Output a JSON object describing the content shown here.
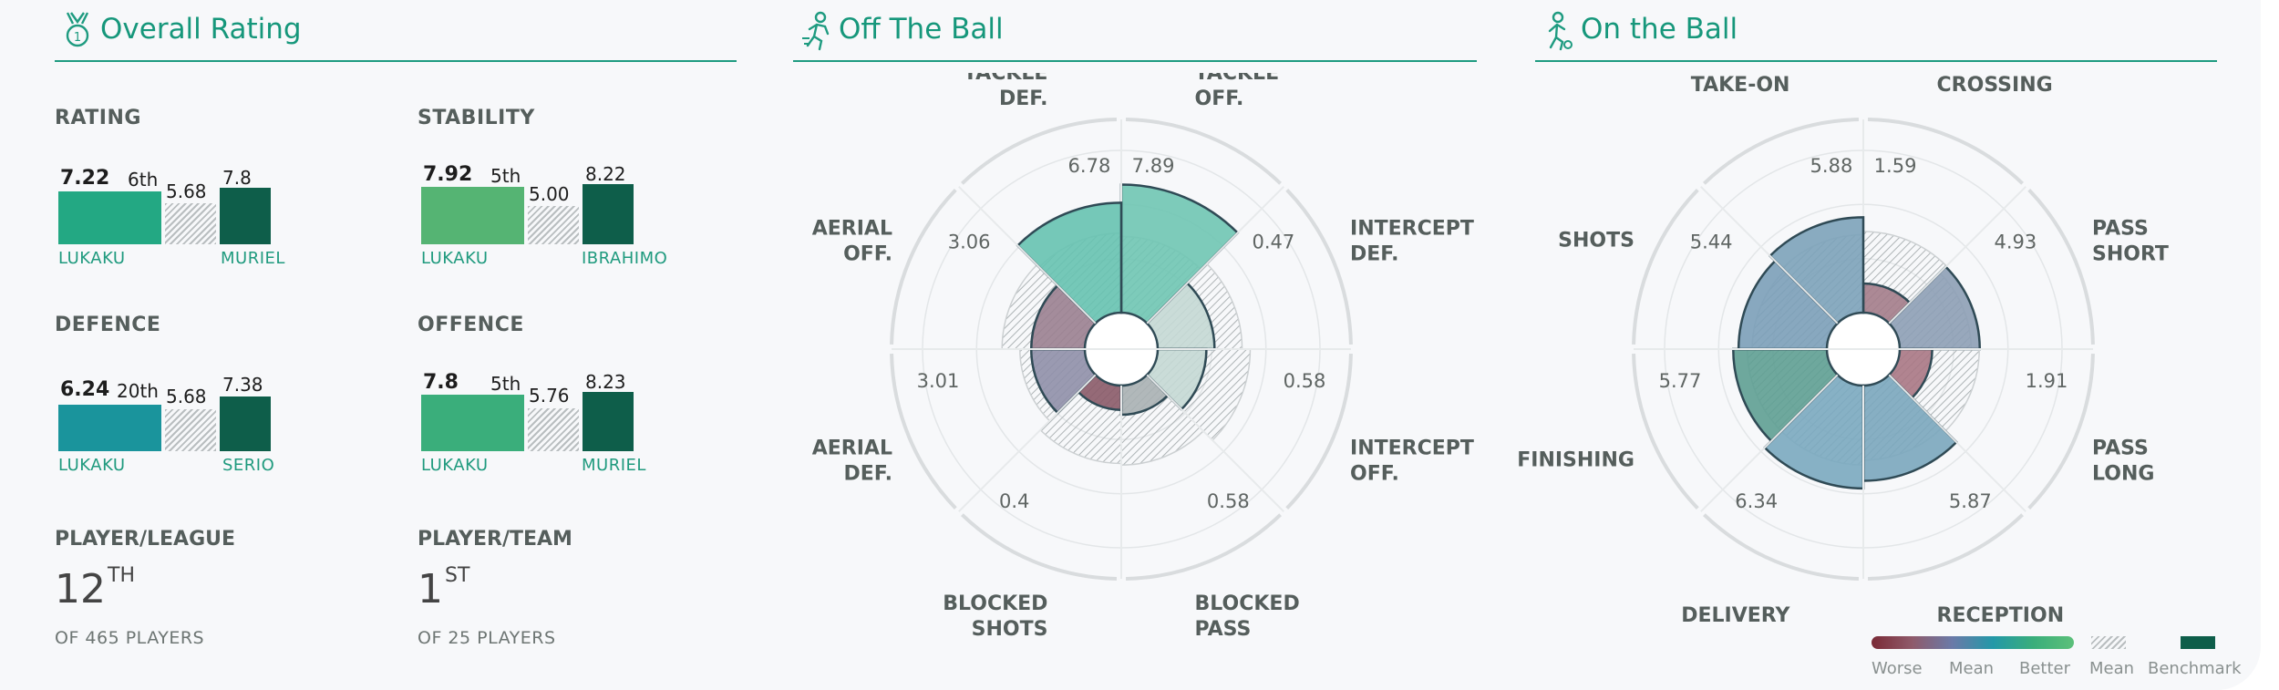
{
  "sections": {
    "overall": {
      "title": "Overall Rating",
      "icon": "medal-icon"
    },
    "off_ball": {
      "title": "Off The Ball",
      "icon": "running-player-icon"
    },
    "on_ball": {
      "title": "On the Ball",
      "icon": "player-with-ball-icon"
    }
  },
  "metrics": [
    {
      "label": "RATING",
      "value": "7.22",
      "rank": "6th",
      "mean": "5.68",
      "benchmark": "7.8",
      "value_num": 7.22,
      "mean_num": 5.68,
      "benchmark_num": 7.8,
      "player": "LUKAKU",
      "benchmark_player": "MURIEL",
      "color": "#23a883"
    },
    {
      "label": "STABILITY",
      "value": "7.92",
      "rank": "5th",
      "mean": "5.00",
      "benchmark": "8.22",
      "value_num": 7.92,
      "mean_num": 5.0,
      "benchmark_num": 8.22,
      "player": "LUKAKU",
      "benchmark_player": "IBRAHIMO",
      "color": "#55b473"
    },
    {
      "label": "DEFENCE",
      "value": "6.24",
      "rank": "20th",
      "mean": "5.68",
      "benchmark": "7.38",
      "value_num": 6.24,
      "mean_num": 5.68,
      "benchmark_num": 7.38,
      "player": "LUKAKU",
      "benchmark_player": "SERIO",
      "color": "#1a949c"
    },
    {
      "label": "OFFENCE",
      "value": "7.8",
      "rank": "5th",
      "mean": "5.76",
      "benchmark": "8.23",
      "value_num": 7.8,
      "mean_num": 5.76,
      "benchmark_num": 8.23,
      "player": "LUKAKU",
      "benchmark_player": "MURIEL",
      "color": "#3aae7b"
    }
  ],
  "ranks": [
    {
      "label": "PLAYER/LEAGUE",
      "number": "12",
      "suffix": "TH",
      "sub": "OF 465 PLAYERS"
    },
    {
      "label": "PLAYER/TEAM",
      "number": "1",
      "suffix": "ST",
      "sub": "OF 25 PLAYERS"
    }
  ],
  "benchmark_color": "#0e5e4a",
  "chart_data": [
    {
      "type": "polar",
      "title": "Off The Ball",
      "categories": [
        {
          "label": "TACKLE OFF.",
          "value": "7.89",
          "player": 7.89,
          "mean": 4.7,
          "color": "#6fc5b3"
        },
        {
          "label": "INTERCEPT DEF.",
          "value": "0.47",
          "player": 3.5,
          "mean": 5.2,
          "color": "#c4d8d4"
        },
        {
          "label": "INTERCEPT OFF.",
          "value": "0.58",
          "player": 3.0,
          "mean": 5.7,
          "color": "#c4d8d4"
        },
        {
          "label": "BLOCKED PASS",
          "value": "0.58",
          "player": 1.8,
          "mean": 4.9,
          "color": "#a8b0b3"
        },
        {
          "label": "BLOCKED SHOTS",
          "value": "0.4",
          "player": 1.5,
          "mean": 4.8,
          "color": "#8a5a68"
        },
        {
          "label": "AERIAL DEF.",
          "value": "3.01",
          "player": 3.3,
          "mean": 4.0,
          "color": "#8f8fa8"
        },
        {
          "label": "AERIAL OFF.",
          "value": "3.06",
          "player": 3.3,
          "mean": 5.1,
          "color": "#9a7f90"
        },
        {
          "label": "TACKLE DEF.",
          "value": "6.78",
          "player": 6.78,
          "mean": 4.9,
          "color": "#66c2b0"
        }
      ]
    },
    {
      "type": "polar",
      "title": "On the Ball",
      "categories": [
        {
          "label": "CROSSING",
          "value": "1.59",
          "player": 1.8,
          "mean": 5.0,
          "color": "#a37c89"
        },
        {
          "label": "PASS SHORT",
          "value": "4.93",
          "player": 4.93,
          "mean": 4.4,
          "color": "#8d9fb5"
        },
        {
          "label": "PASS LONG",
          "value": "1.91",
          "player": 2.0,
          "mean": 4.9,
          "color": "#a87784"
        },
        {
          "label": "RECEPTION",
          "value": "5.87",
          "player": 5.87,
          "mean": 4.6,
          "color": "#7aa6bd"
        },
        {
          "label": "DELIVERY",
          "value": "6.34",
          "player": 6.34,
          "mean": 4.9,
          "color": "#7aa8bf"
        },
        {
          "label": "FINISHING",
          "value": "5.77",
          "player": 5.77,
          "mean": 4.9,
          "color": "#5e9f92"
        },
        {
          "label": "SHOTS",
          "value": "5.44",
          "player": 5.44,
          "mean": 4.6,
          "color": "#7b9fb8"
        },
        {
          "label": "TAKE-ON",
          "value": "5.88",
          "player": 5.88,
          "mean": 4.8,
          "color": "#7ca2b9"
        }
      ]
    }
  ],
  "legend": {
    "worse": "Worse",
    "mean": "Mean",
    "better": "Better",
    "hatch_mean": "Mean",
    "benchmark": "Benchmark"
  }
}
